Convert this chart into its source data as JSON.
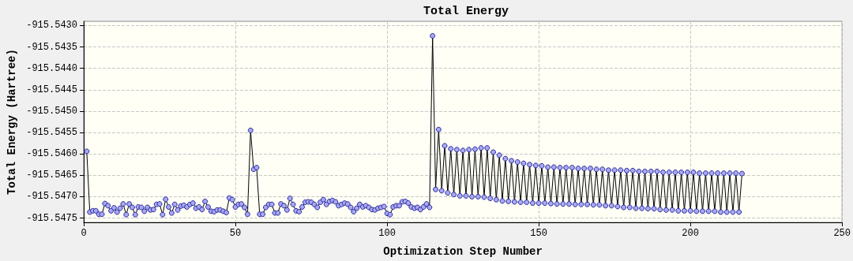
{
  "chart_data": {
    "type": "line",
    "title": "Total Energy",
    "xlabel": "Optimization Step Number",
    "ylabel": "Total Energy (Hartree)",
    "xlim": [
      0,
      250
    ],
    "xticks": [
      0,
      50,
      100,
      150,
      200,
      250
    ],
    "ylim": [
      -915.5476,
      -915.5429
    ],
    "yticks": [
      {
        "value": -915.543,
        "label": "-915.5430"
      },
      {
        "value": -915.5435,
        "label": "-915.5435"
      },
      {
        "value": -915.544,
        "label": "-915.5440"
      },
      {
        "value": -915.5445,
        "label": "-915.5445"
      },
      {
        "value": -915.545,
        "label": "-915.5450"
      },
      {
        "value": -915.5455,
        "label": "-915.5455"
      },
      {
        "value": -915.546,
        "label": "-915.5460"
      },
      {
        "value": -915.5465,
        "label": "-915.5465"
      },
      {
        "value": -915.547,
        "label": "-915.5470"
      },
      {
        "value": -915.5475,
        "label": "-915.5475"
      }
    ],
    "grid": true,
    "marker": "circle",
    "line_style": "solid",
    "series": [
      {
        "color": "#000000",
        "x": [
          1,
          2,
          3,
          4,
          5,
          6,
          7,
          8,
          9,
          10,
          11,
          12,
          13,
          14,
          15,
          16,
          17,
          18,
          19,
          20,
          21,
          22,
          23,
          24,
          25,
          26,
          27,
          28,
          29,
          30,
          31,
          32,
          33,
          34,
          35,
          36,
          37,
          38,
          39,
          40,
          41,
          42,
          43,
          44,
          45,
          46,
          47,
          48,
          49,
          50,
          51,
          52,
          53,
          54,
          55,
          56,
          57,
          58,
          59,
          60,
          61,
          62,
          63,
          64,
          65,
          66,
          67,
          68,
          69,
          70,
          71,
          72,
          73,
          74,
          75,
          76,
          77,
          78,
          79,
          80,
          81,
          82,
          83,
          84,
          85,
          86,
          87,
          88,
          89,
          90,
          91,
          92,
          93,
          94,
          95,
          96,
          97,
          98,
          99,
          100,
          101,
          102,
          103,
          104,
          105,
          106,
          107,
          108,
          109,
          110,
          111,
          112,
          113,
          114,
          115,
          116,
          117,
          118,
          119,
          120,
          121,
          122,
          123,
          124,
          125,
          126,
          127,
          128,
          129,
          130,
          131,
          132,
          133,
          134,
          135,
          136,
          137,
          138,
          139,
          140,
          141,
          142,
          143,
          144,
          145,
          146,
          147,
          148,
          149,
          150,
          151,
          152,
          153,
          154,
          155,
          156,
          157,
          158,
          159,
          160,
          161,
          162,
          163,
          164,
          165,
          166,
          167,
          168,
          169,
          170,
          171,
          172,
          173,
          174,
          175,
          176,
          177,
          178,
          179,
          180,
          181,
          182,
          183,
          184,
          185,
          186,
          187,
          188,
          189,
          190,
          191,
          192,
          193,
          194,
          195,
          196,
          197,
          198,
          199,
          200,
          201,
          202,
          203,
          204,
          205,
          206,
          207,
          208,
          209,
          210,
          211,
          212,
          213,
          214,
          215,
          216,
          217
        ],
        "values": [
          -915.54594,
          -915.54736,
          -915.54733,
          -915.54733,
          -915.54741,
          -915.54741,
          -915.54716,
          -915.54721,
          -915.54733,
          -915.54726,
          -915.54736,
          -915.54727,
          -915.54717,
          -915.54742,
          -915.54717,
          -915.54725,
          -915.54742,
          -915.54724,
          -915.54725,
          -915.54734,
          -915.54725,
          -915.54731,
          -915.5473,
          -915.54718,
          -915.54717,
          -915.54742,
          -915.54706,
          -915.54724,
          -915.54738,
          -915.54718,
          -915.54731,
          -915.54722,
          -915.5472,
          -915.54724,
          -915.54718,
          -915.54715,
          -915.54727,
          -915.54724,
          -915.5473,
          -915.54711,
          -915.54724,
          -915.54734,
          -915.54735,
          -915.54731,
          -915.54731,
          -915.54734,
          -915.54737,
          -915.54703,
          -915.54707,
          -915.54724,
          -915.54718,
          -915.54717,
          -915.54725,
          -915.54741,
          -915.54545,
          -915.54636,
          -915.54632,
          -915.54741,
          -915.54741,
          -915.54725,
          -915.54718,
          -915.54718,
          -915.54738,
          -915.54738,
          -915.54717,
          -915.54721,
          -915.54731,
          -915.54704,
          -915.54718,
          -915.54733,
          -915.54735,
          -915.54724,
          -915.54713,
          -915.54712,
          -915.54713,
          -915.54718,
          -915.54725,
          -915.54713,
          -915.54707,
          -915.54718,
          -915.54711,
          -915.54709,
          -915.54712,
          -915.54721,
          -915.54718,
          -915.54715,
          -915.54717,
          -915.54725,
          -915.54735,
          -915.54727,
          -915.54718,
          -915.54724,
          -915.54721,
          -915.54725,
          -915.5473,
          -915.54731,
          -915.54727,
          -915.54725,
          -915.54723,
          -915.54739,
          -915.54742,
          -915.54724,
          -915.54721,
          -915.54721,
          -915.54712,
          -915.54711,
          -915.54715,
          -915.54724,
          -915.54727,
          -915.54725,
          -915.5473,
          -915.54724,
          -915.54717,
          -915.54725,
          -915.54324,
          -915.54683,
          -915.54543,
          -915.54686,
          -915.54581,
          -915.54691,
          -915.54588,
          -915.54695,
          -915.5459,
          -915.54698,
          -915.54592,
          -915.54698,
          -915.5459,
          -915.547,
          -915.54589,
          -915.547,
          -915.54586,
          -915.54701,
          -915.54586,
          -915.54704,
          -915.54596,
          -915.54707,
          -915.54603,
          -915.5471,
          -915.54611,
          -915.54711,
          -915.54616,
          -915.54712,
          -915.54619,
          -915.54713,
          -915.54622,
          -915.54713,
          -915.54625,
          -915.54715,
          -915.54627,
          -915.54715,
          -915.54628,
          -915.54715,
          -915.54631,
          -915.54716,
          -915.54631,
          -915.54717,
          -915.54632,
          -915.54717,
          -915.54632,
          -915.54717,
          -915.54632,
          -915.54718,
          -915.54634,
          -915.54718,
          -915.54634,
          -915.54718,
          -915.54634,
          -915.54719,
          -915.54636,
          -915.54719,
          -915.54636,
          -915.54721,
          -915.54638,
          -915.54721,
          -915.54638,
          -915.54723,
          -915.54638,
          -915.54725,
          -915.54639,
          -915.54725,
          -915.54639,
          -915.54727,
          -915.54641,
          -915.54727,
          -915.54641,
          -915.54728,
          -915.54641,
          -915.54728,
          -915.54641,
          -915.5473,
          -915.54643,
          -915.54731,
          -915.54643,
          -915.54731,
          -915.54643,
          -915.54733,
          -915.54643,
          -915.54733,
          -915.54643,
          -915.54733,
          -915.54643,
          -915.54734,
          -915.54645,
          -915.54734,
          -915.54645,
          -915.54734,
          -915.54645,
          -915.54734,
          -915.54645,
          -915.54736,
          -915.54645,
          -915.54736,
          -915.54645,
          -915.54736,
          -915.54645,
          -915.54736,
          -915.54646
        ]
      }
    ]
  }
}
